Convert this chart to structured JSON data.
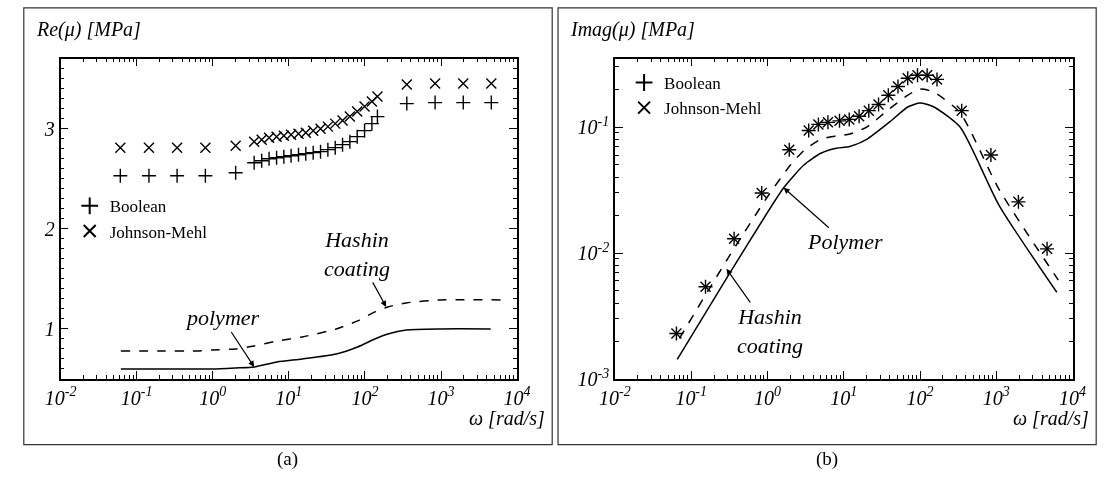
{
  "chart_data": [
    {
      "type": "scatter",
      "title": "Re(μ) [MPa]",
      "xlabel": "ω [rad/s]",
      "log": "x",
      "legend": "left",
      "xlim": [
        0.01,
        10000
      ],
      "ylim": [
        0.5,
        3.7
      ],
      "xticks": [
        {
          "value": 0.01,
          "label": "10$^{-2}$"
        },
        {
          "value": 0.1,
          "label": "10$^{-1}$"
        },
        {
          "value": 1,
          "label": "10$^{0}$"
        },
        {
          "value": 10,
          "label": "10$^{1}$"
        },
        {
          "value": 100,
          "label": "10$^{2}$"
        },
        {
          "value": 1000,
          "label": "10$^{3}$"
        },
        {
          "value": 10000,
          "label": "10$^{4}$"
        }
      ],
      "yticks": [
        1,
        2,
        3
      ],
      "series": [
        {
          "name": "Boolean",
          "marker": "cross",
          "color": "#000000",
          "x": [
            0.061,
            0.145,
            0.34,
            0.8,
            2.0,
            3.5,
            4.4,
            5.5,
            6.9,
            8.6,
            10.7,
            13.4,
            16.7,
            20.9,
            26.1,
            32.6,
            40.7,
            50.8,
            63.4,
            79.2,
            98.9,
            123.5,
            146,
            355,
            836,
            1960,
            4580
          ],
          "values": [
            2.53,
            2.53,
            2.53,
            2.53,
            2.56,
            2.66,
            2.68,
            2.7,
            2.71,
            2.72,
            2.73,
            2.74,
            2.75,
            2.76,
            2.77,
            2.79,
            2.81,
            2.84,
            2.87,
            2.92,
            2.98,
            3.05,
            3.12,
            3.25,
            3.26,
            3.26,
            3.26
          ]
        },
        {
          "name": "Johnson-Mehl",
          "marker": "x",
          "color": "#000000",
          "x": [
            0.061,
            0.145,
            0.34,
            0.8,
            2.0,
            3.5,
            4.4,
            5.5,
            6.9,
            8.6,
            10.7,
            13.4,
            16.7,
            20.9,
            26.1,
            32.6,
            40.7,
            50.8,
            63.4,
            79.2,
            98.9,
            123.5,
            146,
            355,
            836,
            1960,
            4580
          ],
          "values": [
            2.81,
            2.81,
            2.81,
            2.81,
            2.83,
            2.87,
            2.89,
            2.91,
            2.92,
            2.93,
            2.94,
            2.95,
            2.96,
            2.98,
            3.0,
            3.02,
            3.05,
            3.08,
            3.12,
            3.17,
            3.22,
            3.27,
            3.32,
            3.44,
            3.45,
            3.45,
            3.45
          ]
        },
        {
          "type": "line",
          "line_style": "solid",
          "color": "#000000",
          "x": [
            0.062,
            0.2,
            0.6,
            1,
            2,
            3.5,
            7,
            15,
            42,
            80,
            135,
            200,
            350,
            1000,
            4500
          ],
          "values": [
            0.6,
            0.6,
            0.6,
            0.6,
            0.61,
            0.62,
            0.67,
            0.7,
            0.75,
            0.82,
            0.9,
            0.95,
            0.99,
            1.0,
            1.0
          ]
        },
        {
          "type": "line",
          "line_style": "dashed",
          "color": "#000000",
          "x": [
            0.062,
            0.2,
            0.6,
            1,
            2,
            3.5,
            7,
            15,
            42,
            80,
            135,
            200,
            350,
            1000,
            6200
          ],
          "values": [
            0.78,
            0.78,
            0.78,
            0.79,
            0.8,
            0.83,
            0.88,
            0.92,
            1.0,
            1.08,
            1.17,
            1.22,
            1.26,
            1.29,
            1.29
          ]
        }
      ],
      "annotations": [
        {
          "text": "polymer",
          "x": 3.5,
          "y": 0.62
        },
        {
          "text": "Hashin\ncoating",
          "x": 190,
          "y": 1.22
        },
        "(a)"
      ]
    },
    {
      "type": "scatter",
      "title": "Imag(μ) [MPa]",
      "xlabel": "ω [rad/s]",
      "log": "xy",
      "legend": "top left",
      "xlim": [
        0.01,
        10000
      ],
      "ylim": [
        0.001,
        0.35
      ],
      "xticks": [
        {
          "value": 0.01,
          "label": "10$^{-2}$"
        },
        {
          "value": 0.1,
          "label": "10$^{-1}$"
        },
        {
          "value": 1,
          "label": "10$^{0}$"
        },
        {
          "value": 10,
          "label": "10$^{1}$"
        },
        {
          "value": 100,
          "label": "10$^{2}$"
        },
        {
          "value": 1000,
          "label": "10$^{3}$"
        },
        {
          "value": 10000,
          "label": "10$^{4}$"
        }
      ],
      "yticks": [
        {
          "value": 0.001,
          "label": "10$^{-3}$"
        },
        {
          "value": 0.01,
          "label": "10$^{-2}$"
        },
        {
          "value": 0.1,
          "label": "10$^{-1}$"
        }
      ],
      "series": [
        {
          "name": "Boolean",
          "marker": "cross",
          "color": "#000000",
          "x": [
            0.064,
            0.154,
            0.365,
            0.84,
            1.93,
            3.47,
            4.65,
            6.2,
            8.8,
            11.8,
            15.9,
            21.3,
            28.6,
            38.4,
            51.4,
            69,
            92.7,
            124,
            167,
            352,
            850,
            1950,
            4630
          ],
          "values": [
            0.0023,
            0.0054,
            0.013,
            0.03,
            0.066,
            0.094,
            0.105,
            0.109,
            0.112,
            0.115,
            0.122,
            0.135,
            0.151,
            0.179,
            0.21,
            0.244,
            0.258,
            0.258,
            0.239,
            0.135,
            0.06,
            0.0255,
            0.0108
          ]
        },
        {
          "name": "Johnson-Mehl",
          "marker": "x",
          "color": "#000000",
          "x": [
            0.064,
            0.154,
            0.365,
            0.84,
            1.93,
            3.47,
            4.65,
            6.2,
            8.8,
            11.8,
            15.9,
            21.3,
            28.6,
            38.4,
            51.4,
            69,
            92.7,
            124,
            167,
            352,
            850,
            1950,
            4630
          ],
          "values": [
            0.0023,
            0.0054,
            0.013,
            0.03,
            0.066,
            0.094,
            0.105,
            0.109,
            0.112,
            0.115,
            0.122,
            0.135,
            0.151,
            0.179,
            0.21,
            0.244,
            0.258,
            0.258,
            0.239,
            0.135,
            0.06,
            0.0255,
            0.0108
          ]
        },
        {
          "type": "line",
          "line_style": "solid",
          "color": "#000000",
          "x": [
            0.0656,
            0.3,
            1,
            1.63,
            3,
            5,
            8,
            12,
            20,
            40,
            70,
            100,
            150,
            335,
            1087,
            6210
          ],
          "values": [
            0.00143,
            0.0065,
            0.021,
            0.033,
            0.05,
            0.062,
            0.068,
            0.07,
            0.08,
            0.11,
            0.145,
            0.155,
            0.145,
            0.1,
            0.0239,
            0.00488
          ]
        },
        {
          "type": "line",
          "line_style": "dashed",
          "color": "#000000",
          "x": [
            0.07,
            0.3,
            1,
            2,
            3,
            5,
            8,
            12,
            20,
            40,
            70,
            100,
            150,
            335,
            1087,
            6500
          ],
          "values": [
            0.0021,
            0.009,
            0.028,
            0.05,
            0.065,
            0.08,
            0.085,
            0.088,
            0.1,
            0.14,
            0.18,
            0.2,
            0.19,
            0.13,
            0.032,
            0.0061
          ]
        }
      ],
      "annotations": [
        {
          "text": "Polymer",
          "x": 1.63,
          "y": 0.033
        },
        {
          "text": "Hashin\ncoating",
          "x": 0.29,
          "y": 0.0075
        },
        "(b)"
      ]
    }
  ]
}
